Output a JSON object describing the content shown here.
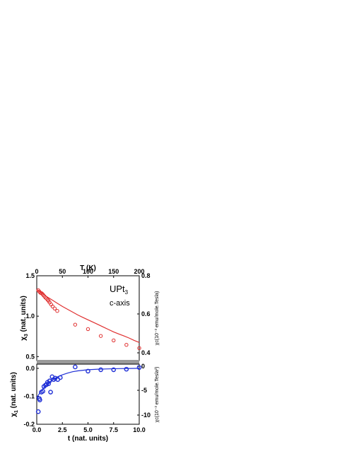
{
  "chart_data": [
    {
      "type": "scatter",
      "panel": "top",
      "top_xlabel": "T (K)",
      "top_x_ticks": [
        0,
        50,
        100,
        150,
        200
      ],
      "ylabel": "χ3 (nat. units)",
      "ylabel_main": "χ",
      "ylabel_sub": "3",
      "ylabel_rest": " (nat. units)",
      "y_ticks": [
        "0.5",
        "1.0",
        "1.5"
      ],
      "ylim": [
        0.45,
        1.5
      ],
      "xlim": [
        0,
        200
      ],
      "right_ylabel": "χc(10⁻³ emu/mole.Tesla)",
      "right_y_ticks": [
        "0.4",
        "0.6",
        "0.8"
      ],
      "annotation": {
        "main": "UPt",
        "sub": "3",
        "line2": "c-axis"
      },
      "series": [
        {
          "kind": "points",
          "color": "#e03030",
          "x": [
            3,
            5,
            7,
            9,
            11,
            13,
            15,
            17,
            19,
            21,
            23,
            25,
            28,
            31,
            35,
            40,
            75,
            100,
            125,
            150,
            175,
            200
          ],
          "y": [
            1.32,
            1.305,
            1.29,
            1.285,
            1.275,
            1.26,
            1.245,
            1.23,
            1.22,
            1.205,
            1.19,
            1.17,
            1.145,
            1.12,
            1.095,
            1.065,
            0.895,
            0.84,
            0.755,
            0.7,
            0.645,
            0.605
          ]
        },
        {
          "kind": "line",
          "color": "#e03030",
          "x": [
            0,
            10,
            20,
            30,
            40,
            50,
            60,
            70,
            80,
            90,
            100,
            110,
            120,
            130,
            140,
            150,
            160,
            170,
            180,
            190,
            200
          ],
          "y": [
            1.33,
            1.285,
            1.24,
            1.2,
            1.16,
            1.12,
            1.085,
            1.05,
            1.015,
            0.985,
            0.955,
            0.925,
            0.895,
            0.865,
            0.835,
            0.805,
            0.78,
            0.755,
            0.73,
            0.7,
            0.675
          ]
        }
      ]
    },
    {
      "type": "scatter",
      "panel": "bottom",
      "xlabel": "t (nat. units)",
      "x_ticks": [
        "0.0",
        "2.5",
        "5.0",
        "7.5",
        "10.0"
      ],
      "xlim": [
        0,
        10
      ],
      "ylabel": "χ1 (nat. units)",
      "ylabel_main": "χ",
      "ylabel_sub": "1",
      "ylabel_rest": " (nat. units)",
      "y_ticks": [
        "-0.2",
        "-0.1",
        "0.0"
      ],
      "ylim": [
        -0.2,
        0.015
      ],
      "right_ylabel": "χc(10⁻³ emu/mole.Tesla²)",
      "right_y_ticks": [
        "-10",
        "-5",
        "0"
      ],
      "series": [
        {
          "kind": "points",
          "color": "#1f2fd6",
          "x": [
            0.15,
            0.25,
            0.3,
            0.45,
            0.6,
            0.7,
            0.85,
            0.95,
            1.05,
            1.15,
            1.25,
            1.35,
            1.5,
            1.65,
            1.8,
            2.05,
            2.3,
            3.75,
            5.0,
            6.25,
            7.5,
            8.75,
            10.0
          ],
          "y": [
            -0.155,
            -0.108,
            -0.113,
            -0.085,
            -0.082,
            -0.065,
            -0.06,
            -0.058,
            -0.05,
            -0.055,
            -0.045,
            -0.085,
            -0.03,
            -0.04,
            -0.035,
            -0.04,
            -0.033,
            0.005,
            -0.01,
            -0.005,
            -0.005,
            -0.003,
            0.003
          ]
        },
        {
          "kind": "line",
          "color": "#1f2fd6",
          "x": [
            0,
            0.3,
            0.6,
            1.0,
            1.5,
            2.0,
            2.5,
            3.0,
            3.5,
            4.0,
            5.0,
            6.0,
            7.0,
            8.0,
            9.0,
            10.0
          ],
          "y": [
            -0.105,
            -0.088,
            -0.073,
            -0.057,
            -0.042,
            -0.031,
            -0.023,
            -0.017,
            -0.012,
            -0.009,
            -0.005,
            -0.003,
            -0.002,
            -0.001,
            -0.0005,
            0.0
          ]
        }
      ]
    }
  ]
}
